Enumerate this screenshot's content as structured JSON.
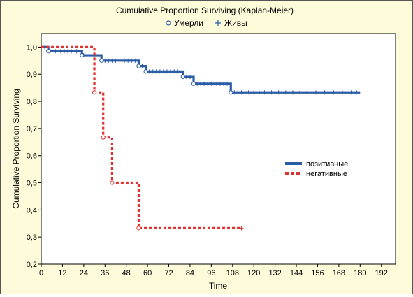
{
  "chart_data": {
    "type": "line",
    "title": "Cumulative Proportion Surviving (Kaplan-Meier)",
    "xlabel": "Time",
    "ylabel": "Cumulative Proportion Surviving",
    "xlim": [
      0,
      200
    ],
    "ylim": [
      0.2,
      1.05
    ],
    "xticks": [
      0,
      12,
      24,
      36,
      48,
      60,
      72,
      84,
      96,
      108,
      120,
      132,
      144,
      156,
      168,
      180,
      192
    ],
    "xtick_labels": [
      "0",
      "12",
      "24",
      "36",
      "48",
      "60",
      "72",
      "84",
      "96",
      "108",
      "120",
      "132",
      "144",
      "156",
      "168",
      "180",
      "192"
    ],
    "yticks": [
      0.2,
      0.3,
      0.4,
      0.5,
      0.6,
      0.7,
      0.8,
      0.9,
      1.0
    ],
    "ytick_labels": [
      "0,2",
      "0,3",
      "0,4",
      "0,5",
      "0,6",
      "0,7",
      "0,8",
      "0,9",
      "1,0"
    ],
    "marker_legend": [
      {
        "label": "Умерли",
        "marker": "circle"
      },
      {
        "label": "Живы",
        "marker": "plus"
      }
    ],
    "legend_placement": "right",
    "grid": false,
    "series": [
      {
        "name": "позитивные",
        "color": "#2a5ca8",
        "style": "solid",
        "steps": [
          [
            0,
            1.0
          ],
          [
            4,
            0.985
          ],
          [
            23,
            0.97
          ],
          [
            34,
            0.95
          ],
          [
            55,
            0.93
          ],
          [
            59,
            0.91
          ],
          [
            80,
            0.89
          ],
          [
            86,
            0.865
          ],
          [
            107,
            0.833
          ],
          [
            180,
            0.833
          ]
        ],
        "events": [
          4,
          23,
          34,
          55,
          59,
          80,
          86,
          107
        ],
        "censored": [
          2,
          5,
          8,
          11,
          13,
          15,
          17,
          20,
          24,
          27,
          30,
          36,
          38,
          40,
          42,
          44,
          47,
          49,
          51,
          53,
          57,
          61,
          63,
          65,
          67,
          69,
          71,
          73,
          75,
          77,
          82,
          84,
          88,
          90,
          92,
          94,
          96,
          99,
          101,
          103,
          105,
          109,
          111,
          113,
          115,
          117,
          120,
          123,
          126,
          130,
          134,
          138,
          142,
          146,
          150,
          155,
          160,
          165,
          170,
          175,
          178
        ]
      },
      {
        "name": "негативные",
        "color": "#e03030",
        "style": "dashed",
        "steps": [
          [
            0,
            1.0
          ],
          [
            30,
            0.833
          ],
          [
            35,
            0.667
          ],
          [
            40,
            0.5
          ],
          [
            55,
            0.333
          ],
          [
            113,
            0.333
          ]
        ],
        "events": [
          30,
          35,
          40,
          55
        ],
        "censored": [
          113
        ]
      }
    ]
  }
}
